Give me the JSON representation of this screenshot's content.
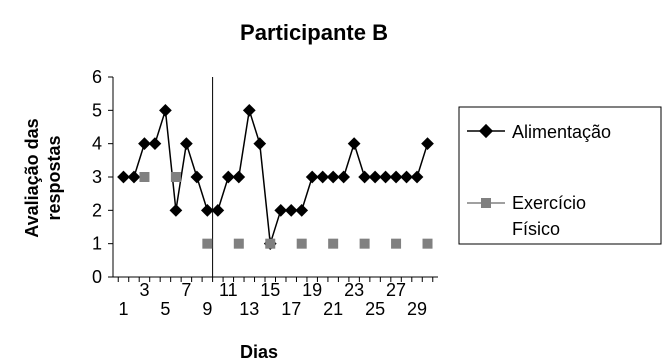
{
  "chart_data": {
    "type": "line",
    "title": "Participante B",
    "xlabel": "Dias",
    "ylabel": "Avaliação das respostas",
    "xlim": [
      0,
      31
    ],
    "ylim": [
      0,
      6
    ],
    "y_ticks": [
      0,
      1,
      2,
      3,
      4,
      5,
      6
    ],
    "x_tick_labels": [
      1,
      5,
      9,
      13,
      17,
      21,
      25,
      29
    ],
    "x_tick_labels_row2": [
      3,
      7,
      11,
      15,
      19,
      23,
      27
    ],
    "phase_line_x": 9.5,
    "legend_position": "right",
    "series": [
      {
        "name": "Alimentação",
        "marker": "diamond",
        "color": "#000000",
        "connected": true,
        "x": [
          1,
          2,
          3,
          4,
          5,
          6,
          7,
          8,
          9,
          10,
          11,
          12,
          13,
          14,
          15,
          16,
          17,
          18,
          19,
          20,
          21,
          22,
          23,
          24,
          25,
          26,
          27,
          28,
          29,
          30
        ],
        "y": [
          3,
          3,
          4,
          4,
          5,
          2,
          4,
          3,
          2,
          2,
          3,
          3,
          5,
          4,
          1,
          2,
          2,
          2,
          3,
          3,
          3,
          3,
          4,
          3,
          3,
          3,
          3,
          3,
          3,
          4
        ]
      },
      {
        "name": "Exercício Físico",
        "legend_lines": [
          "Exercício",
          "Físico"
        ],
        "marker": "square",
        "color": "#808080",
        "connected": false,
        "x": [
          3,
          6,
          9,
          12,
          15,
          18,
          21,
          24,
          27,
          30
        ],
        "y": [
          3,
          3,
          1,
          1,
          1,
          1,
          1,
          1,
          1,
          1
        ]
      }
    ]
  }
}
